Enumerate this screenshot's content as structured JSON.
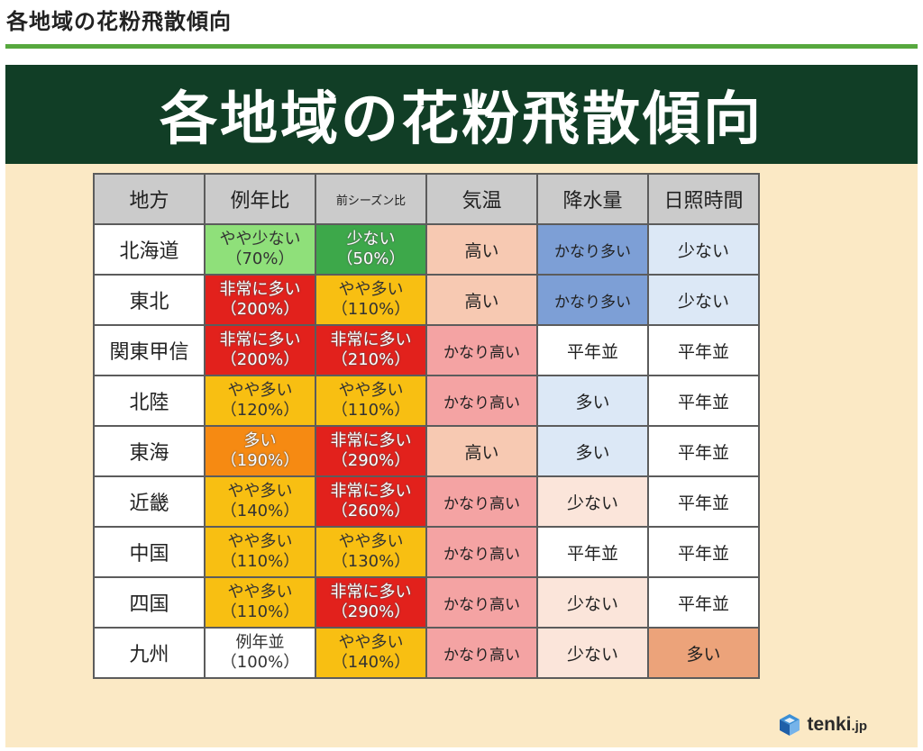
{
  "page_heading": "各地域の花粉飛散傾向",
  "banner_title": "各地域の花粉飛散傾向",
  "colors": {
    "green_rule": "#57a83e",
    "banner_bg": "#113e26",
    "figure_bg": "#fbe9c5",
    "header_bg": "#cbcbcb",
    "level_colors": {
      "非常に多い": "#e2211c",
      "多い": "#f68a12",
      "やや多い": "#f8bf12",
      "例年並": "#ffffff",
      "やや少ない": "#8fe07a",
      "少ない": "#3da84a"
    },
    "temp_colors": {
      "かなり高い": "#f4a3a3",
      "高い": "#f7c9b2"
    },
    "precip_colors": {
      "かなり多い": "#7d9fd6",
      "多い": "#dce8f6",
      "平年並": "#ffffff",
      "少ない": "#fbe5da"
    },
    "sun_colors": {
      "少ない": "#dce8f6",
      "平年並": "#ffffff",
      "多い": "#eca37a"
    }
  },
  "table": {
    "headers": [
      "地方",
      "例年比",
      "前シーズン比",
      "気温",
      "降水量",
      "日照時間"
    ],
    "rows": [
      {
        "region": "北海道",
        "ratio_label": "やや少ない",
        "ratio_pct": "（70%）",
        "prev_label": "少ない",
        "prev_pct": "（50%）",
        "temp": "高い",
        "precip": "かなり多い",
        "sun": "少ない"
      },
      {
        "region": "東北",
        "ratio_label": "非常に多い",
        "ratio_pct": "（200%）",
        "prev_label": "やや多い",
        "prev_pct": "（110%）",
        "temp": "高い",
        "precip": "かなり多い",
        "sun": "少ない"
      },
      {
        "region": "関東甲信",
        "ratio_label": "非常に多い",
        "ratio_pct": "（200%）",
        "prev_label": "非常に多い",
        "prev_pct": "（210%）",
        "temp": "かなり高い",
        "precip": "平年並",
        "sun": "平年並"
      },
      {
        "region": "北陸",
        "ratio_label": "やや多い",
        "ratio_pct": "（120%）",
        "prev_label": "やや多い",
        "prev_pct": "（110%）",
        "temp": "かなり高い",
        "precip": "多い",
        "sun": "平年並"
      },
      {
        "region": "東海",
        "ratio_label": "多い",
        "ratio_pct": "（190%）",
        "prev_label": "非常に多い",
        "prev_pct": "（290%）",
        "temp": "高い",
        "precip": "多い",
        "sun": "平年並"
      },
      {
        "region": "近畿",
        "ratio_label": "やや多い",
        "ratio_pct": "（140%）",
        "prev_label": "非常に多い",
        "prev_pct": "（260%）",
        "temp": "かなり高い",
        "precip": "少ない",
        "sun": "平年並"
      },
      {
        "region": "中国",
        "ratio_label": "やや多い",
        "ratio_pct": "（110%）",
        "prev_label": "やや多い",
        "prev_pct": "（130%）",
        "temp": "かなり高い",
        "precip": "平年並",
        "sun": "平年並"
      },
      {
        "region": "四国",
        "ratio_label": "やや多い",
        "ratio_pct": "（110%）",
        "prev_label": "非常に多い",
        "prev_pct": "（290%）",
        "temp": "かなり高い",
        "precip": "少ない",
        "sun": "平年並"
      },
      {
        "region": "九州",
        "ratio_label": "例年並",
        "ratio_pct": "（100%）",
        "prev_label": "やや多い",
        "prev_pct": "（140%）",
        "temp": "かなり高い",
        "precip": "少ない",
        "sun": "多い"
      }
    ]
  },
  "logo": {
    "name": "tenki",
    "suffix": ".jp",
    "icon": "tenki-cube-icon"
  }
}
